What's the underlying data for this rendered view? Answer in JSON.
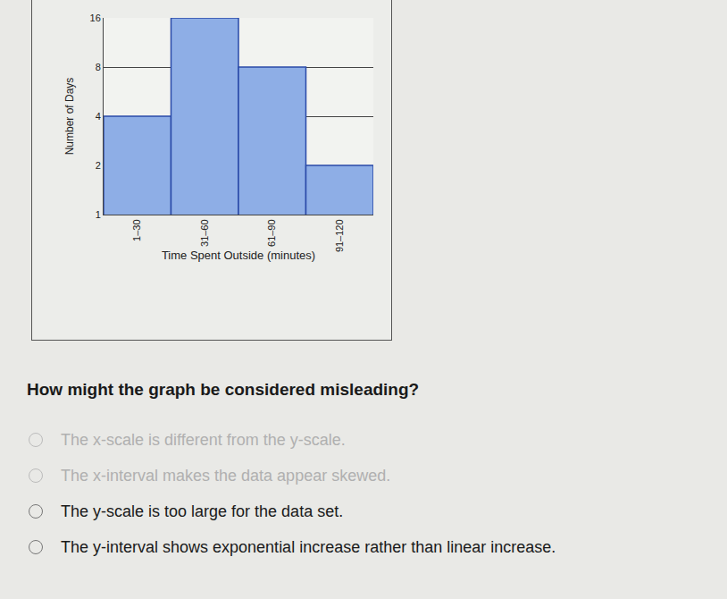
{
  "chart_data": {
    "type": "bar",
    "x_label": "Time Spent Outside (minutes)",
    "y_label": "Number of Days",
    "categories": [
      "1–30",
      "31–60",
      "61–90",
      "91–120"
    ],
    "values": [
      4,
      16,
      8,
      2
    ],
    "color": "#8eaee6",
    "ylim": [
      1,
      16
    ],
    "yticks": [
      1,
      2,
      4,
      8,
      16
    ],
    "log": "y",
    "grid": true
  },
  "question": "How might the graph be considered misleading?",
  "options": [
    "The x-scale is different from the y-scale.",
    "The x-interval makes the data appear skewed.",
    "The y-scale is too large for the data set.",
    "The y-interval shows exponential increase rather than linear increase."
  ]
}
